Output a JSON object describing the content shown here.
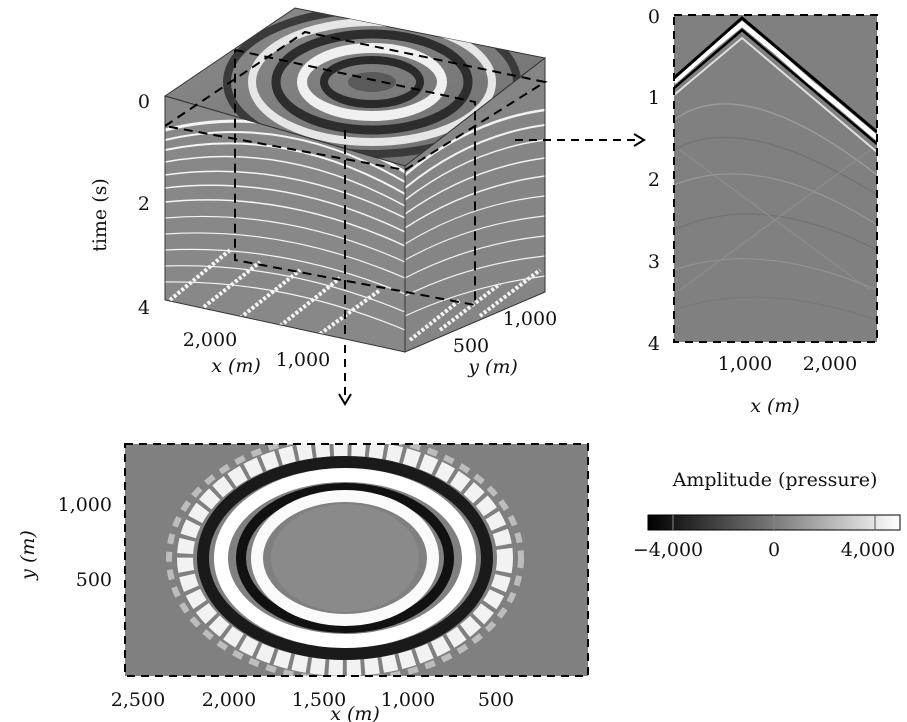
{
  "cube": {
    "t_axis_label": "time (s)",
    "t_ticks": [
      "0",
      "2",
      "4"
    ],
    "x_axis_label": "x (m)",
    "x_ticks": [
      "2,000",
      "1,000"
    ],
    "y_axis_label": "y (m)",
    "y_ticks": [
      "500",
      "1,000"
    ]
  },
  "section": {
    "t_ticks": [
      "0",
      "1",
      "2",
      "3",
      "4"
    ],
    "x_ticks": [
      "1,000",
      "2,000"
    ],
    "x_axis_label": "x (m)"
  },
  "timeslice": {
    "x_ticks": [
      "2,500",
      "2,000",
      "1,500",
      "1,000",
      "500"
    ],
    "x_axis_label": "x (m)",
    "y_ticks": [
      "1,000",
      "500"
    ],
    "y_axis_label": "y (m)"
  },
  "colorbar": {
    "title": "Amplitude (pressure)",
    "ticks": [
      "−4,000",
      "0",
      "4,000"
    ],
    "range": [
      -4000,
      4000
    ],
    "colors": {
      "low": "#000000",
      "high": "#ffffff"
    }
  }
}
